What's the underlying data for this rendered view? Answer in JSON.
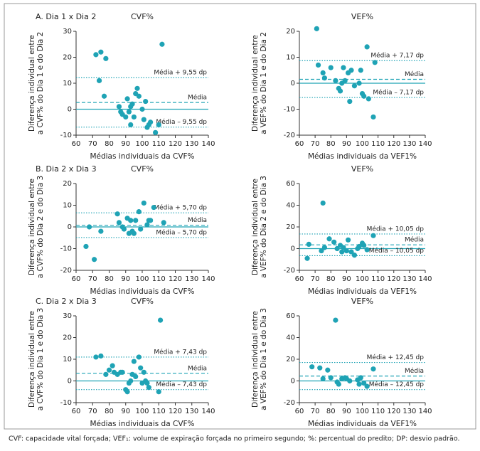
{
  "chart_data": [
    {
      "type": "scatter",
      "panel_label": "A. Dia 1 x Dia 2",
      "title": "CVF%",
      "ylabel": [
        "Diferença individual entre",
        "a CVF% do Dia 1 e do Dia 2"
      ],
      "xlabel": "Médias individuais da CVF%",
      "color": "#1fa3b5",
      "xlim": [
        60,
        140
      ],
      "xticks": [
        60,
        70,
        80,
        90,
        100,
        110,
        120,
        130,
        140
      ],
      "ylim": [
        -10,
        30
      ],
      "yticks": [
        -10,
        0,
        10,
        20,
        30
      ],
      "x": [
        72,
        75,
        78,
        74,
        77,
        86,
        87,
        88,
        90,
        91,
        92,
        93,
        93,
        94,
        95,
        96,
        97,
        98,
        100,
        101,
        102,
        103,
        104,
        105,
        108,
        110,
        112
      ],
      "y": [
        21,
        22,
        19.5,
        11,
        5,
        1,
        -1,
        -2,
        -3,
        4,
        -1,
        1,
        -6,
        2,
        -3,
        6,
        8,
        5,
        0,
        -4,
        3,
        -7,
        -6,
        -5,
        -9,
        -6,
        25
      ],
      "reference_lines": [
        {
          "value": 12.2,
          "style": "dotted",
          "label": "Média + 9,55 dp"
        },
        {
          "value": 2.6,
          "style": "dashed",
          "label": "Média"
        },
        {
          "value": 0,
          "style": "solid"
        },
        {
          "value": -6.9,
          "style": "dotted",
          "label": "Média – 9,55 dp"
        }
      ]
    },
    {
      "type": "scatter",
      "title": "VEF%",
      "ylabel": [
        "Diferença individual entre",
        "a VEF% do Dia 1 e do Dia 2"
      ],
      "xlabel": "Médias individuais da VEF1%",
      "color": "#1fa3b5",
      "xlim": [
        60,
        140
      ],
      "xticks": [
        60,
        70,
        80,
        90,
        100,
        110,
        120,
        130,
        140
      ],
      "ylim": [
        -20,
        20
      ],
      "yticks": [
        -20,
        -10,
        0,
        10,
        20
      ],
      "x": [
        71,
        72,
        75,
        76,
        80,
        83,
        85,
        86,
        87,
        88,
        89,
        91,
        92,
        93,
        95,
        98,
        99,
        100,
        101,
        103,
        104,
        107,
        108
      ],
      "y": [
        21,
        7,
        4,
        2,
        6,
        1,
        -2,
        -3,
        0,
        6,
        1,
        4,
        -7,
        5,
        -1,
        0,
        5,
        -4,
        -5,
        14,
        -6,
        -13,
        8
      ],
      "reference_lines": [
        {
          "value": 8.7,
          "style": "dotted",
          "label": "Média + 7,17 dp"
        },
        {
          "value": 1.5,
          "style": "dashed",
          "label": "Média"
        },
        {
          "value": 0,
          "style": "solid"
        },
        {
          "value": -5.5,
          "style": "dotted",
          "label": "Média – 7,17 dp"
        }
      ]
    },
    {
      "type": "scatter",
      "panel_label": "B. Dia 2 x Dia 3",
      "title": "CVF%",
      "ylabel": [
        "Diferença individual entre",
        "a CVF% do Dia 2 e do Dia 3"
      ],
      "xlabel": "Médias individuais da CVF%",
      "color": "#1fa3b5",
      "xlim": [
        60,
        140
      ],
      "xticks": [
        60,
        70,
        80,
        90,
        100,
        110,
        120,
        130,
        140
      ],
      "ylim": [
        -20,
        20
      ],
      "yticks": [
        -20,
        -10,
        0,
        10,
        20
      ],
      "x": [
        66,
        68,
        71,
        75,
        85,
        86,
        88,
        89,
        91,
        92,
        93,
        94,
        95,
        96,
        98,
        99,
        101,
        103,
        104,
        105,
        107,
        113
      ],
      "y": [
        -9,
        0,
        -15,
        -2,
        6,
        2,
        0,
        -1,
        4,
        -3,
        3,
        -2,
        -3,
        3,
        7,
        -1,
        11,
        1,
        3,
        3,
        9,
        2
      ],
      "reference_lines": [
        {
          "value": 6.5,
          "style": "dotted",
          "label": "Média + 5,70 dp"
        },
        {
          "value": 0.8,
          "style": "dashed",
          "label": "Média"
        },
        {
          "value": 0,
          "style": "solid"
        },
        {
          "value": -4.9,
          "style": "dotted",
          "label": "Média – 5,70 dp"
        }
      ]
    },
    {
      "type": "scatter",
      "title": "VEF%",
      "ylabel": [
        "Diferença individual entre",
        "a VEF% do Dia 2 e do Dia 3"
      ],
      "xlabel": "Médias individuais da VEF1%",
      "color": "#1fa3b5",
      "xlim": [
        60,
        140
      ],
      "xticks": [
        60,
        70,
        80,
        90,
        100,
        110,
        120,
        130,
        140
      ],
      "ylim": [
        -20,
        60
      ],
      "yticks": [
        -20,
        0,
        20,
        40,
        60
      ],
      "x": [
        65,
        66,
        74,
        75,
        76,
        79,
        82,
        84,
        86,
        87,
        88,
        90,
        91,
        93,
        95,
        97,
        98,
        100,
        101,
        103,
        107
      ],
      "y": [
        -9,
        4,
        -2,
        42,
        1,
        9,
        6,
        0,
        3,
        -3,
        1,
        -2,
        8,
        -3,
        -6,
        0,
        2,
        5,
        3,
        -1,
        12
      ],
      "reference_lines": [
        {
          "value": 13.5,
          "style": "dotted",
          "label": "Média + 10,05 dp"
        },
        {
          "value": 3.5,
          "style": "dashed",
          "label": "Média"
        },
        {
          "value": 0,
          "style": "solid"
        },
        {
          "value": -6.5,
          "style": "dotted",
          "label": "Média – 10,05 dp"
        }
      ]
    },
    {
      "type": "scatter",
      "panel_label": "C. Dia 2 x Dia 3",
      "title": "CVF%",
      "ylabel": [
        "Diferença individual entre",
        "a CVF% do Dia 1 e do Dia 3"
      ],
      "xlabel": "Médias individuais da CVF%",
      "color": "#1fa3b5",
      "xlim": [
        60,
        140
      ],
      "xticks": [
        60,
        70,
        80,
        90,
        100,
        110,
        120,
        130,
        140
      ],
      "ylim": [
        -10,
        30
      ],
      "yticks": [
        -10,
        0,
        10,
        20,
        30
      ],
      "x": [
        72,
        75,
        78,
        80,
        82,
        83,
        85,
        87,
        88,
        90,
        91,
        92,
        93,
        94,
        95,
        96,
        98,
        99,
        100,
        101,
        102,
        103,
        104,
        110,
        111
      ],
      "y": [
        11,
        11.5,
        3,
        5,
        7,
        4,
        3,
        4,
        4,
        -4,
        -5,
        -1,
        0,
        3,
        9,
        2,
        11,
        6,
        -1,
        4,
        0,
        -1,
        -3,
        -5,
        28
      ],
      "reference_lines": [
        {
          "value": 11,
          "style": "dotted",
          "label": "Média + 7,43 dp"
        },
        {
          "value": 3.5,
          "style": "dashed",
          "label": "Média"
        },
        {
          "value": 0,
          "style": "solid"
        },
        {
          "value": -4,
          "style": "dotted",
          "label": "Média – 7,43 dp"
        }
      ]
    },
    {
      "type": "scatter",
      "title": "VEF%",
      "ylabel": [
        "Diferença individual entre",
        "a VEF% do Dia 1 e do Dia 3"
      ],
      "xlabel": "Médias individuais da VEF1%",
      "color": "#1fa3b5",
      "xlim": [
        60,
        140
      ],
      "xticks": [
        60,
        70,
        80,
        90,
        100,
        110,
        120,
        130,
        140
      ],
      "ylim": [
        -20,
        60
      ],
      "yticks": [
        -20,
        0,
        20,
        40,
        60
      ],
      "x": [
        68,
        73,
        75,
        78,
        80,
        83,
        84,
        85,
        87,
        89,
        90,
        92,
        97,
        98,
        99,
        101,
        103,
        107
      ],
      "y": [
        13,
        12,
        2,
        10,
        3,
        56,
        -1,
        -3,
        2,
        3,
        2,
        0,
        1,
        -3,
        3,
        -2,
        -5,
        11
      ],
      "reference_lines": [
        {
          "value": 17,
          "style": "dotted",
          "label": "Média + 12,45 dp"
        },
        {
          "value": 4.5,
          "style": "dashed",
          "label": "Média"
        },
        {
          "value": 0,
          "style": "solid"
        },
        {
          "value": -8,
          "style": "dotted",
          "label": "Média – 12,45 dp"
        }
      ]
    }
  ],
  "caption": "CVF: capacidade vital forçada; VEF₁: volume de expiração forçada no primeiro segundo; %: percentual do predito; DP: desvio padrão."
}
